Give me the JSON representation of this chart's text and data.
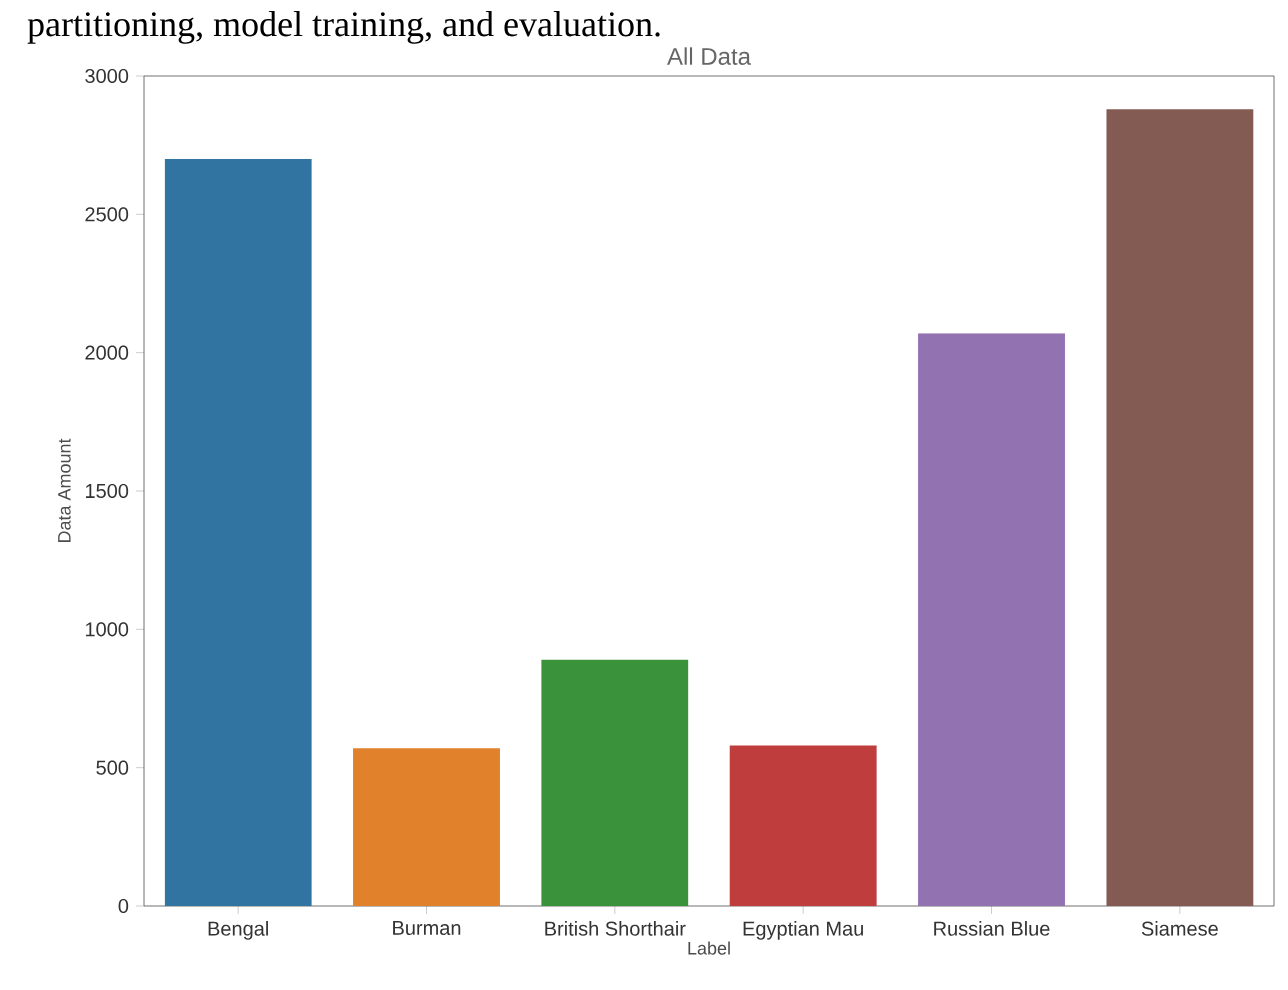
{
  "chart_data": {
    "type": "bar",
    "title": "All Data",
    "xlabel": "Label",
    "ylabel": "Data Amount",
    "annotations": [
      "partitioning, model training, and evaluation."
    ],
    "categories": [
      "Bengal",
      "Burman",
      "British Shorthair",
      "Egyptian Mau",
      "Russian Blue",
      "Siamese"
    ],
    "values": [
      2700,
      570,
      890,
      580,
      2070,
      2880
    ],
    "colors": [
      "#3274a1",
      "#e1812c",
      "#3a923a",
      "#c03d3e",
      "#9372b2",
      "#845b53"
    ],
    "ylim": [
      0,
      3000
    ],
    "yticks": [
      0,
      500,
      1000,
      1500,
      2000,
      2500,
      3000
    ],
    "grid": false
  }
}
